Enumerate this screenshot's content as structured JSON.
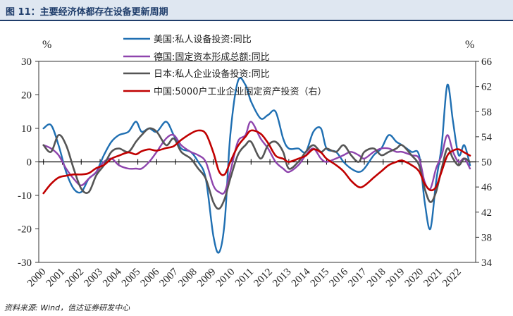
{
  "header": {
    "title": "图 11：主要经济体都存在设备更新周期"
  },
  "footer": {
    "source": "资料来源: Wind，信达证券研发中心"
  },
  "chart_data": {
    "type": "line",
    "x_years": [
      "2000",
      "2001",
      "2002",
      "2003",
      "2004",
      "2005",
      "2006",
      "2007",
      "2008",
      "2009",
      "2010",
      "2011",
      "2012",
      "2013",
      "2014",
      "2015",
      "2016",
      "2017",
      "2018",
      "2019",
      "2020",
      "2021",
      "2022"
    ],
    "y_left": {
      "unit": "%",
      "range": [
        -30,
        30
      ],
      "ticks": [
        30,
        20,
        10,
        0,
        -10,
        -20,
        -30
      ]
    },
    "y_right": {
      "unit": "%",
      "range": [
        34,
        66
      ],
      "ticks": [
        66,
        62,
        58,
        54,
        50,
        46,
        42,
        38,
        34
      ]
    },
    "series": [
      {
        "name": "美国:私人设备投资:同比",
        "color": "#1f6fb2",
        "axis": "left",
        "points": [
          [
            2000.0,
            10
          ],
          [
            2000.4,
            11
          ],
          [
            2000.8,
            5
          ],
          [
            2001.2,
            -3
          ],
          [
            2001.6,
            -8
          ],
          [
            2002.0,
            -9
          ],
          [
            2002.4,
            -5
          ],
          [
            2002.8,
            -3
          ],
          [
            2003.2,
            2
          ],
          [
            2003.6,
            6
          ],
          [
            2004.0,
            8
          ],
          [
            2004.5,
            9
          ],
          [
            2004.9,
            12
          ],
          [
            2005.2,
            9
          ],
          [
            2005.6,
            10
          ],
          [
            2006.0,
            9
          ],
          [
            2006.5,
            12
          ],
          [
            2006.9,
            8
          ],
          [
            2007.3,
            4
          ],
          [
            2007.8,
            3
          ],
          [
            2008.2,
            0
          ],
          [
            2008.6,
            -5
          ],
          [
            2009.0,
            -22
          ],
          [
            2009.3,
            -27
          ],
          [
            2009.6,
            -18
          ],
          [
            2009.9,
            8
          ],
          [
            2010.3,
            24
          ],
          [
            2010.7,
            23
          ],
          [
            2011.0,
            18
          ],
          [
            2011.5,
            13
          ],
          [
            2011.9,
            14
          ],
          [
            2012.3,
            15
          ],
          [
            2012.7,
            7
          ],
          [
            2013.0,
            4
          ],
          [
            2013.5,
            4
          ],
          [
            2013.9,
            3
          ],
          [
            2014.3,
            9
          ],
          [
            2014.7,
            10
          ],
          [
            2015.0,
            4
          ],
          [
            2015.5,
            3
          ],
          [
            2015.9,
            0
          ],
          [
            2016.3,
            -2
          ],
          [
            2016.7,
            -3
          ],
          [
            2017.0,
            -2
          ],
          [
            2017.5,
            2
          ],
          [
            2017.9,
            4
          ],
          [
            2018.3,
            8
          ],
          [
            2018.7,
            6
          ],
          [
            2019.0,
            5
          ],
          [
            2019.5,
            3
          ],
          [
            2019.9,
            2
          ],
          [
            2020.2,
            -12
          ],
          [
            2020.5,
            -20
          ],
          [
            2020.8,
            -6
          ],
          [
            2021.1,
            5
          ],
          [
            2021.4,
            23
          ],
          [
            2021.7,
            12
          ],
          [
            2022.0,
            2
          ],
          [
            2022.3,
            5
          ],
          [
            2022.6,
            -1
          ]
        ]
      },
      {
        "name": "德国:固定资本形成总额:同比",
        "color": "#8e44ad",
        "axis": "left",
        "points": [
          [
            2000.0,
            5
          ],
          [
            2000.4,
            4
          ],
          [
            2000.8,
            2
          ],
          [
            2001.2,
            -2
          ],
          [
            2001.6,
            -5
          ],
          [
            2002.0,
            -7
          ],
          [
            2002.4,
            -5
          ],
          [
            2002.8,
            -3
          ],
          [
            2003.2,
            0
          ],
          [
            2003.6,
            1
          ],
          [
            2004.0,
            -1
          ],
          [
            2004.5,
            -2
          ],
          [
            2004.9,
            -2
          ],
          [
            2005.2,
            -2
          ],
          [
            2005.6,
            0
          ],
          [
            2006.0,
            3
          ],
          [
            2006.5,
            7
          ],
          [
            2006.9,
            8
          ],
          [
            2007.3,
            5
          ],
          [
            2007.8,
            3
          ],
          [
            2008.2,
            2
          ],
          [
            2008.6,
            0
          ],
          [
            2009.0,
            -7
          ],
          [
            2009.3,
            -9
          ],
          [
            2009.6,
            -9
          ],
          [
            2009.9,
            -3
          ],
          [
            2010.3,
            6
          ],
          [
            2010.7,
            8
          ],
          [
            2011.0,
            12
          ],
          [
            2011.5,
            7
          ],
          [
            2011.9,
            4
          ],
          [
            2012.3,
            0
          ],
          [
            2012.7,
            -2
          ],
          [
            2013.0,
            -3
          ],
          [
            2013.5,
            -1
          ],
          [
            2013.9,
            2
          ],
          [
            2014.3,
            4
          ],
          [
            2014.7,
            1
          ],
          [
            2015.0,
            0
          ],
          [
            2015.5,
            1
          ],
          [
            2015.9,
            2
          ],
          [
            2016.3,
            3
          ],
          [
            2016.7,
            2
          ],
          [
            2017.0,
            1
          ],
          [
            2017.5,
            3
          ],
          [
            2017.9,
            4
          ],
          [
            2018.3,
            4
          ],
          [
            2018.7,
            3
          ],
          [
            2019.0,
            3
          ],
          [
            2019.5,
            2
          ],
          [
            2019.9,
            1
          ],
          [
            2020.2,
            -6
          ],
          [
            2020.5,
            -8
          ],
          [
            2020.8,
            -2
          ],
          [
            2021.1,
            2
          ],
          [
            2021.4,
            8
          ],
          [
            2021.7,
            3
          ],
          [
            2022.0,
            0
          ],
          [
            2022.3,
            1
          ],
          [
            2022.6,
            -2
          ]
        ]
      },
      {
        "name": "日本:私人企业设备投资:同比",
        "color": "#555555",
        "axis": "left",
        "points": [
          [
            2000.0,
            5
          ],
          [
            2000.4,
            3
          ],
          [
            2000.8,
            8
          ],
          [
            2001.2,
            5
          ],
          [
            2001.6,
            -2
          ],
          [
            2002.0,
            -8
          ],
          [
            2002.4,
            -9
          ],
          [
            2002.8,
            -4
          ],
          [
            2003.2,
            -1
          ],
          [
            2003.6,
            3
          ],
          [
            2004.0,
            4
          ],
          [
            2004.5,
            3
          ],
          [
            2004.9,
            6
          ],
          [
            2005.2,
            8
          ],
          [
            2005.6,
            10
          ],
          [
            2006.0,
            9
          ],
          [
            2006.5,
            5
          ],
          [
            2006.9,
            7
          ],
          [
            2007.3,
            3
          ],
          [
            2007.8,
            1
          ],
          [
            2008.2,
            -2
          ],
          [
            2008.6,
            -5
          ],
          [
            2009.0,
            -12
          ],
          [
            2009.3,
            -14
          ],
          [
            2009.6,
            -11
          ],
          [
            2009.9,
            -5
          ],
          [
            2010.3,
            2
          ],
          [
            2010.7,
            5
          ],
          [
            2011.0,
            6
          ],
          [
            2011.5,
            1
          ],
          [
            2011.9,
            5
          ],
          [
            2012.3,
            6
          ],
          [
            2012.7,
            3
          ],
          [
            2013.0,
            -2
          ],
          [
            2013.5,
            0
          ],
          [
            2013.9,
            3
          ],
          [
            2014.3,
            5
          ],
          [
            2014.7,
            3
          ],
          [
            2015.0,
            4
          ],
          [
            2015.5,
            3
          ],
          [
            2015.9,
            5
          ],
          [
            2016.3,
            2
          ],
          [
            2016.7,
            0
          ],
          [
            2017.0,
            3
          ],
          [
            2017.5,
            4
          ],
          [
            2017.9,
            2
          ],
          [
            2018.3,
            3
          ],
          [
            2018.7,
            4
          ],
          [
            2019.0,
            5
          ],
          [
            2019.5,
            2
          ],
          [
            2019.9,
            -1
          ],
          [
            2020.2,
            -8
          ],
          [
            2020.5,
            -12
          ],
          [
            2020.8,
            -9
          ],
          [
            2021.1,
            -2
          ],
          [
            2021.4,
            4
          ],
          [
            2021.7,
            1
          ],
          [
            2022.0,
            -1
          ],
          [
            2022.3,
            1
          ],
          [
            2022.6,
            0
          ]
        ]
      },
      {
        "name": "中国:5000户工业企业固定资产投资（右）",
        "color": "#c00000",
        "axis": "right",
        "points": [
          [
            2000.0,
            45
          ],
          [
            2000.4,
            46.5
          ],
          [
            2000.8,
            47.5
          ],
          [
            2001.2,
            47.8
          ],
          [
            2001.6,
            48
          ],
          [
            2002.0,
            48
          ],
          [
            2002.4,
            48.2
          ],
          [
            2002.8,
            49
          ],
          [
            2003.2,
            49.5
          ],
          [
            2003.6,
            50.5
          ],
          [
            2004.0,
            51
          ],
          [
            2004.5,
            51.5
          ],
          [
            2004.9,
            51.2
          ],
          [
            2005.2,
            51.7
          ],
          [
            2005.6,
            52
          ],
          [
            2006.0,
            51.8
          ],
          [
            2006.5,
            52.2
          ],
          [
            2006.9,
            52.5
          ],
          [
            2007.3,
            53.5
          ],
          [
            2007.8,
            54.5
          ],
          [
            2008.2,
            55
          ],
          [
            2008.6,
            54.5
          ],
          [
            2009.0,
            51.5
          ],
          [
            2009.3,
            48.5
          ],
          [
            2009.6,
            48
          ],
          [
            2009.9,
            50
          ],
          [
            2010.3,
            52.5
          ],
          [
            2010.7,
            54
          ],
          [
            2011.0,
            55
          ],
          [
            2011.5,
            54.5
          ],
          [
            2011.9,
            53
          ],
          [
            2012.3,
            51
          ],
          [
            2012.7,
            50.5
          ],
          [
            2013.0,
            50
          ],
          [
            2013.5,
            50.5
          ],
          [
            2013.9,
            51
          ],
          [
            2014.3,
            52
          ],
          [
            2014.7,
            51.5
          ],
          [
            2015.0,
            50.5
          ],
          [
            2015.5,
            49.5
          ],
          [
            2015.9,
            48.5
          ],
          [
            2016.3,
            47
          ],
          [
            2016.7,
            46
          ],
          [
            2017.0,
            46.2
          ],
          [
            2017.5,
            47.5
          ],
          [
            2017.9,
            48.5
          ],
          [
            2018.3,
            49.5
          ],
          [
            2018.7,
            50
          ],
          [
            2019.0,
            50.2
          ],
          [
            2019.5,
            49.5
          ],
          [
            2019.9,
            48.5
          ],
          [
            2020.2,
            46.5
          ],
          [
            2020.5,
            45.5
          ],
          [
            2020.8,
            46
          ],
          [
            2021.1,
            48.5
          ],
          [
            2021.4,
            51
          ],
          [
            2021.7,
            51.8
          ],
          [
            2022.0,
            52
          ],
          [
            2022.3,
            51.5
          ],
          [
            2022.6,
            51
          ]
        ]
      }
    ]
  }
}
